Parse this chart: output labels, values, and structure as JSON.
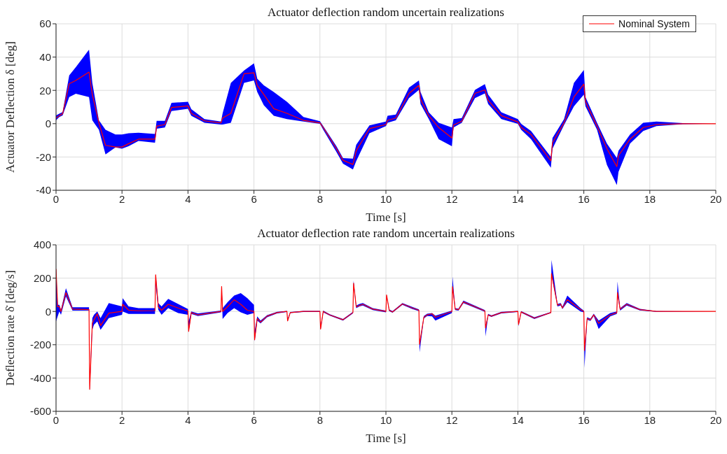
{
  "chart_data": [
    {
      "type": "line",
      "title": "Actuator deflection random uncertain realizations",
      "xlabel": "Time [s]",
      "ylabel": "Actuator Deflection δ [deg]",
      "xlim": [
        0,
        20
      ],
      "xticks": [
        0,
        2,
        4,
        6,
        8,
        10,
        12,
        14,
        16,
        18,
        20
      ],
      "ylim": [
        -40,
        60
      ],
      "yticks": [
        -40,
        -20,
        0,
        20,
        40,
        60
      ],
      "grid": true,
      "legend": "top right",
      "x": [
        0,
        0.1,
        0.2,
        0.4,
        0.6,
        1,
        1.1,
        1.3,
        1.5,
        1.8,
        2,
        2.2,
        2.5,
        3,
        3.05,
        3.3,
        3.5,
        4,
        4.1,
        4.5,
        5,
        5.05,
        5.3,
        5.7,
        6,
        6.1,
        6.3,
        6.6,
        7,
        7.5,
        8,
        8.1,
        8.5,
        8.7,
        9,
        9.1,
        9.5,
        10,
        10.05,
        10.3,
        10.7,
        11,
        11.05,
        11.3,
        11.6,
        12,
        12.05,
        12.3,
        12.7,
        13,
        13.1,
        13.5,
        14,
        14.1,
        14.4,
        15,
        15.05,
        15.4,
        15.7,
        16,
        16.05,
        16.4,
        16.7,
        17,
        17.05,
        17.4,
        17.8,
        18.2,
        19,
        20
      ],
      "series": [
        {
          "name": "Nominal System",
          "color": "#ff0000",
          "values": [
            3.4,
            4.8,
            6,
            24,
            26,
            31,
            17.5,
            0.5,
            -13,
            -14,
            -14,
            -12,
            -9.3,
            -9.3,
            -1.5,
            -0.5,
            9.7,
            10.7,
            6.2,
            1.7,
            0.5,
            3.4,
            6.2,
            30,
            30.5,
            23,
            17.5,
            9,
            6.2,
            2,
            0.5,
            -2.3,
            -15,
            -22,
            -24.5,
            -16.3,
            -3,
            -0.5,
            2,
            3.4,
            18.2,
            23,
            14.6,
            4.8,
            -2.3,
            -8.6,
            -0.8,
            1.5,
            18.2,
            20.3,
            14,
            4.8,
            1,
            -2.3,
            -6.5,
            -22.3,
            -11.4,
            0.5,
            16,
            23.8,
            13.2,
            -1.5,
            -15,
            -25.8,
            -19.2,
            -9.3,
            -2.3,
            -0.5,
            0,
            0
          ],
          "lower": [
            2,
            4,
            5,
            16,
            18,
            16,
            2,
            -3.7,
            -18.5,
            -14.3,
            -15,
            -13.5,
            -10.4,
            -11.4,
            -3,
            -2.3,
            7.6,
            9,
            4.8,
            0.5,
            -0.5,
            -0.5,
            0.5,
            24.5,
            26,
            19,
            11,
            4.8,
            2.7,
            1.3,
            -0.1,
            -3.7,
            -17,
            -24,
            -27.5,
            -22.5,
            -5.8,
            -1.5,
            0.5,
            2,
            15.4,
            20.3,
            11.8,
            2.7,
            -9.3,
            -13.5,
            -2.3,
            0.5,
            15.4,
            18.2,
            11.8,
            2.7,
            -0.1,
            -3.7,
            -9.3,
            -26.5,
            -15,
            -0.8,
            10.4,
            17.5,
            10.4,
            -3.7,
            -24.8,
            -36.8,
            -29,
            -12,
            -4.4,
            -1.5,
            -0.3,
            0
          ],
          "upper": [
            5,
            6,
            7,
            29,
            34,
            44.5,
            24.5,
            2,
            -3.7,
            -6.5,
            -6.5,
            -5.8,
            -5.4,
            -6.2,
            1.7,
            1.7,
            12.5,
            13.2,
            8.7,
            2.7,
            1.3,
            6.2,
            24.5,
            32,
            36.3,
            27,
            23,
            19,
            13.2,
            4,
            1.5,
            -1.5,
            -13.5,
            -20.7,
            -21,
            -12.7,
            -1,
            1.3,
            4.8,
            5.5,
            21.7,
            26,
            19,
            6.9,
            0.5,
            -2.3,
            2.7,
            3.4,
            20.3,
            23.8,
            17.5,
            6.9,
            2.7,
            -0.1,
            -4.4,
            -19.9,
            -8.6,
            2.7,
            24.5,
            32.3,
            16,
            0.5,
            -12,
            -20.6,
            -16.3,
            -6.5,
            0.5,
            1.3,
            0.3,
            0
          ]
        }
      ]
    },
    {
      "type": "line",
      "title": "Actuator deflection rate random uncertain realizations",
      "xlabel": "Time [s]",
      "ylabel": "Deflection rate δ̇ [deg/s]",
      "xlim": [
        0,
        20
      ],
      "xticks": [
        0,
        2,
        4,
        6,
        8,
        10,
        12,
        14,
        16,
        18,
        20
      ],
      "ylim": [
        -600,
        400
      ],
      "yticks": [
        -600,
        -400,
        -200,
        0,
        200,
        400
      ],
      "grid": true,
      "x": [
        0,
        0.05,
        0.1,
        0.15,
        0.3,
        0.5,
        1,
        1.02,
        1.1,
        1.15,
        1.25,
        1.35,
        1.6,
        2,
        2.02,
        2.2,
        2.5,
        3,
        3.02,
        3.1,
        3.2,
        3.4,
        3.7,
        4,
        4.02,
        4.1,
        4.3,
        5,
        5.02,
        5.05,
        5.2,
        5.4,
        5.6,
        5.8,
        6,
        6.02,
        6.1,
        6.2,
        6.4,
        6.7,
        7,
        7.02,
        7.1,
        7.5,
        8,
        8.02,
        8.1,
        8.3,
        8.7,
        9,
        9.02,
        9.1,
        9.2,
        9.3,
        9.6,
        10,
        10.02,
        10.1,
        10.2,
        10.5,
        10.8,
        11,
        11.02,
        11.15,
        11.25,
        11.4,
        11.5,
        12,
        12.02,
        12.1,
        12.2,
        12.35,
        13,
        13.02,
        13.1,
        13.2,
        13.5,
        14,
        14.02,
        14.1,
        14.5,
        15,
        15.02,
        15.2,
        15.3,
        15.35,
        15.5,
        15.9,
        16,
        16.02,
        16.1,
        16.2,
        16.3,
        16.45,
        16.8,
        17,
        17.02,
        17.1,
        17.3,
        17.7,
        18.2,
        20
      ],
      "series": [
        {
          "color": "#ff0000",
          "values": [
            255,
            28,
            30,
            0,
            113,
            14,
            11,
            -468,
            -71,
            -50,
            -14,
            -85,
            -10,
            0,
            43,
            8,
            4,
            5,
            220,
            28,
            7,
            43,
            21,
            3,
            -120,
            -7,
            -21,
            0,
            150,
            0,
            28,
            70,
            43,
            7,
            0,
            -170,
            -43,
            -64,
            -28,
            -7,
            0,
            -57,
            -7,
            0,
            0,
            -106,
            0,
            -21,
            -50,
            -7,
            170,
            28,
            35,
            43,
            14,
            0,
            99,
            7,
            -3,
            45,
            21,
            7,
            -197,
            -35,
            -21,
            -14,
            -35,
            0,
            149,
            14,
            11,
            57,
            3,
            -99,
            -21,
            -28,
            -7,
            0,
            -78,
            -3,
            -40,
            -7,
            227,
            38,
            43,
            21,
            71,
            11,
            0,
            -234,
            -43,
            -50,
            -21,
            -71,
            -21,
            -7,
            113,
            14,
            43,
            11,
            0,
            0
          ],
          "lower": [
            -60,
            -30,
            0,
            -20,
            90,
            5,
            5,
            -475,
            -110,
            -80,
            -60,
            -110,
            -40,
            -20,
            0,
            -15,
            -15,
            -15,
            160,
            10,
            -20,
            20,
            -10,
            -20,
            -125,
            -15,
            -28,
            -5,
            140,
            -45,
            -10,
            20,
            -5,
            -20,
            -10,
            -180,
            -55,
            -72,
            -35,
            -12,
            -3,
            -60,
            -10,
            -3,
            -3,
            -110,
            -5,
            -25,
            -55,
            -12,
            160,
            20,
            30,
            35,
            8,
            -5,
            90,
            2,
            -8,
            40,
            15,
            2,
            -245,
            -42,
            -28,
            -30,
            -55,
            -10,
            140,
            8,
            5,
            50,
            -2,
            -150,
            -25,
            -33,
            -12,
            -3,
            -90,
            -8,
            -45,
            -10,
            220,
            30,
            36,
            15,
            55,
            0,
            -5,
            -340,
            -50,
            -57,
            -28,
            -105,
            -30,
            -15,
            100,
            5,
            35,
            6,
            -2,
            0
          ],
          "upper": [
            255,
            40,
            40,
            10,
            140,
            25,
            25,
            -440,
            -40,
            -20,
            0,
            -40,
            50,
            30,
            80,
            30,
            20,
            20,
            225,
            50,
            30,
            75,
            45,
            15,
            -60,
            0,
            -12,
            5,
            155,
            20,
            55,
            95,
            110,
            80,
            40,
            -120,
            -30,
            -55,
            -22,
            -2,
            3,
            -45,
            -3,
            3,
            3,
            -90,
            5,
            -17,
            -45,
            -2,
            185,
            35,
            45,
            50,
            20,
            5,
            100,
            12,
            2,
            50,
            27,
            12,
            -190,
            -28,
            -14,
            -10,
            -25,
            5,
            210,
            20,
            17,
            65,
            8,
            -90,
            -15,
            -23,
            -2,
            3,
            -70,
            2,
            -35,
            -3,
            310,
            45,
            50,
            28,
            95,
            20,
            5,
            -230,
            -35,
            -43,
            -14,
            -55,
            -10,
            0,
            180,
            20,
            50,
            16,
            2,
            0
          ]
        }
      ]
    }
  ]
}
